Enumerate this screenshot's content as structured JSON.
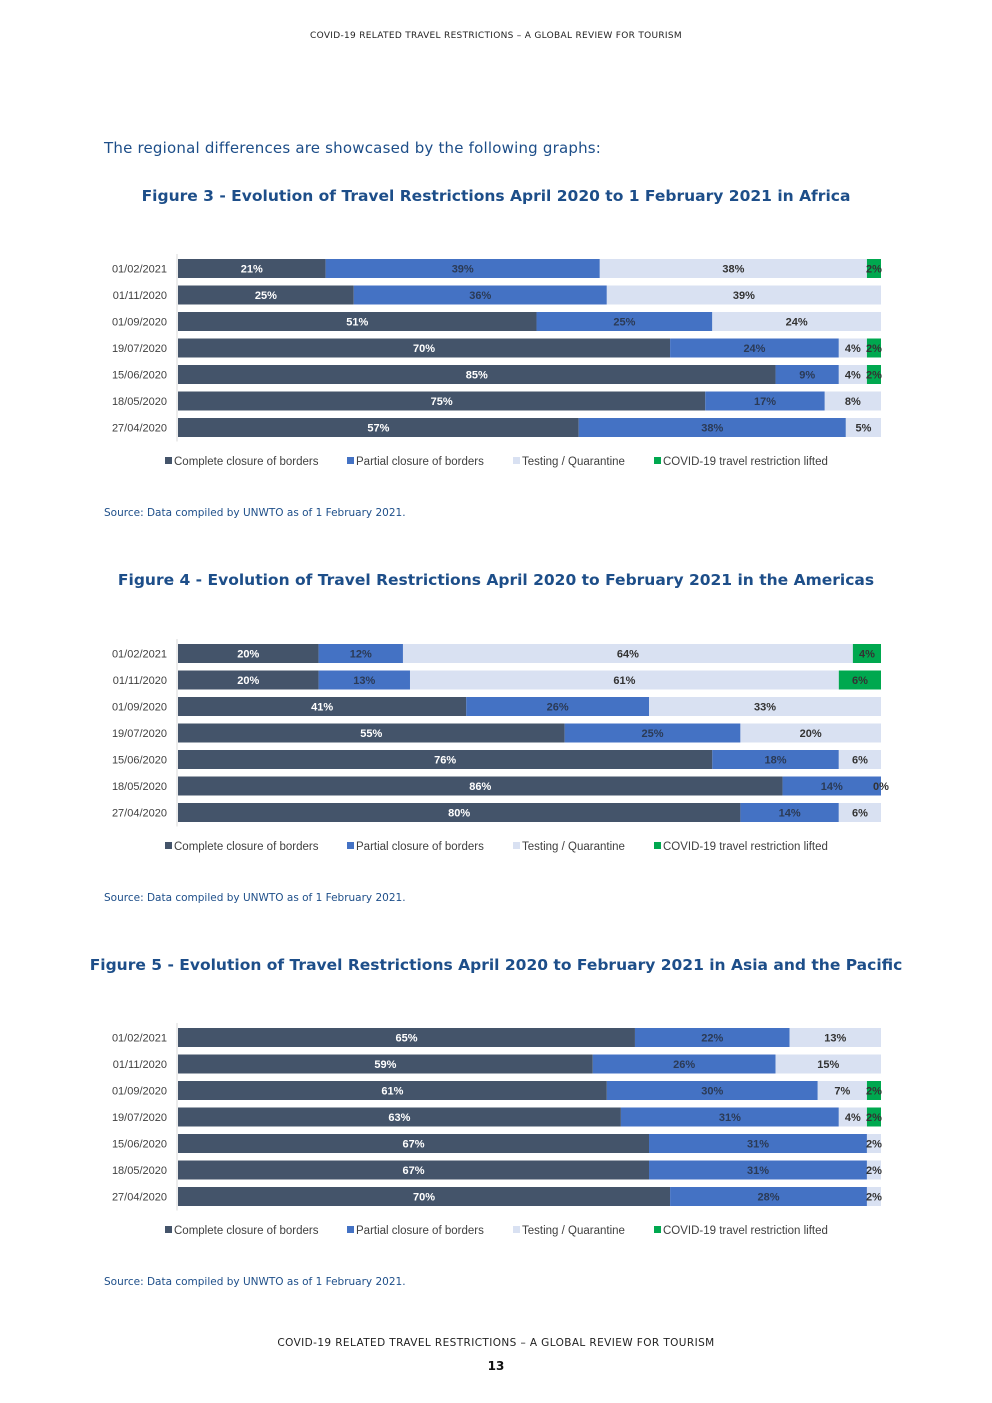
{
  "header": {
    "title": "COVID-19 RELATED TRAVEL RESTRICTIONS – A GLOBAL REVIEW FOR TOURISM"
  },
  "intro": "The regional differences are showcased by the following graphs:",
  "colors": {
    "complete": "#44546a",
    "partial": "#4472c4",
    "testing": "#d9e1f2",
    "lifted": "#00a84f",
    "title": "#1d4e89"
  },
  "figures": [
    {
      "title": "Figure 3 - Evolution of Travel Restrictions April 2020 to 1 February 2021 in Africa",
      "source": "Source: Data compiled by UNWTO as of 1 February 2021."
    },
    {
      "title": "Figure 4 - Evolution of Travel Restrictions April 2020 to February 2021 in the Americas",
      "source": "Source: Data compiled by UNWTO as of 1 February 2021."
    },
    {
      "title": "Figure 5 - Evolution of Travel Restrictions April 2020 to February 2021 in Asia and the Pacific",
      "source": "Source: Data compiled by UNWTO as of 1 February 2021."
    }
  ],
  "chart_data": [
    {
      "type": "bar",
      "orientation": "horizontal",
      "stacked": true,
      "title": "Figure 3 - Evolution of Travel Restrictions April 2020 to 1 February 2021 in Africa",
      "categories": [
        "01/02/2021",
        "01/11/2020",
        "01/09/2020",
        "19/07/2020",
        "15/06/2020",
        "18/05/2020",
        "27/04/2020"
      ],
      "series": [
        {
          "name": "Complete closure of borders",
          "values": [
            21,
            25,
            51,
            70,
            85,
            75,
            57
          ],
          "labels": [
            "21%",
            "25%",
            "51%",
            "70%",
            "85%",
            "75%",
            "57%"
          ]
        },
        {
          "name": "Partial closure of borders",
          "values": [
            39,
            36,
            25,
            24,
            9,
            17,
            38
          ],
          "labels": [
            "39%",
            "36%",
            "25%",
            "24%",
            "9%",
            "17%",
            "38%"
          ]
        },
        {
          "name": "Testing / Quarantine",
          "values": [
            38,
            39,
            24,
            4,
            4,
            8,
            5
          ],
          "labels": [
            "38%",
            "39%",
            "24%",
            "4%",
            "4%",
            "8%",
            "5%"
          ]
        },
        {
          "name": "COVID-19 travel restriction lifted",
          "values": [
            2,
            0,
            0,
            2,
            2,
            0,
            0
          ],
          "labels": [
            "2%",
            "",
            "",
            "2%",
            "2%",
            "",
            ""
          ]
        }
      ],
      "legend": "bottom",
      "xlim": [
        0,
        100
      ]
    },
    {
      "type": "bar",
      "orientation": "horizontal",
      "stacked": true,
      "title": "Figure 4 - Evolution of Travel Restrictions April 2020 to February 2021 in the Americas",
      "categories": [
        "01/02/2021",
        "01/11/2020",
        "01/09/2020",
        "19/07/2020",
        "15/06/2020",
        "18/05/2020",
        "27/04/2020"
      ],
      "series": [
        {
          "name": "Complete closure of borders",
          "values": [
            20,
            20,
            41,
            55,
            76,
            86,
            80
          ],
          "labels": [
            "20%",
            "20%",
            "41%",
            "55%",
            "76%",
            "86%",
            "80%"
          ]
        },
        {
          "name": "Partial closure of borders",
          "values": [
            12,
            13,
            26,
            25,
            18,
            14,
            14
          ],
          "labels": [
            "12%",
            "13%",
            "26%",
            "25%",
            "18%",
            "14%",
            "14%"
          ]
        },
        {
          "name": "Testing / Quarantine",
          "values": [
            64,
            61,
            33,
            20,
            6,
            0,
            6
          ],
          "labels": [
            "64%",
            "61%",
            "33%",
            "20%",
            "6%",
            "0%",
            "6%"
          ]
        },
        {
          "name": "COVID-19 travel restriction lifted",
          "values": [
            4,
            6,
            0,
            0,
            0,
            0,
            0
          ],
          "labels": [
            "4%",
            "6%",
            "",
            "",
            "",
            "",
            ""
          ]
        }
      ],
      "legend": "bottom",
      "xlim": [
        0,
        100
      ]
    },
    {
      "type": "bar",
      "orientation": "horizontal",
      "stacked": true,
      "title": "Figure 5 - Evolution of Travel Restrictions April 2020 to February 2021 in Asia and the Pacific",
      "categories": [
        "01/02/2021",
        "01/11/2020",
        "01/09/2020",
        "19/07/2020",
        "15/06/2020",
        "18/05/2020",
        "27/04/2020"
      ],
      "series": [
        {
          "name": "Complete closure of borders",
          "values": [
            65,
            59,
            61,
            63,
            67,
            67,
            70
          ],
          "labels": [
            "65%",
            "59%",
            "61%",
            "63%",
            "67%",
            "67%",
            "70%"
          ]
        },
        {
          "name": "Partial closure of borders",
          "values": [
            22,
            26,
            30,
            31,
            31,
            31,
            28
          ],
          "labels": [
            "22%",
            "26%",
            "30%",
            "31%",
            "31%",
            "31%",
            "28%"
          ]
        },
        {
          "name": "Testing / Quarantine",
          "values": [
            13,
            15,
            7,
            4,
            2,
            2,
            2
          ],
          "labels": [
            "13%",
            "15%",
            "7%",
            "4%",
            "2%",
            "2%",
            "2%"
          ]
        },
        {
          "name": "COVID-19 travel restriction lifted",
          "values": [
            0,
            0,
            2,
            2,
            0,
            0,
            0
          ],
          "labels": [
            "",
            "",
            "2%",
            "2%",
            "",
            "",
            ""
          ]
        }
      ],
      "legend": "bottom",
      "xlim": [
        0,
        100
      ]
    }
  ],
  "footer": {
    "title": "COVID-19 RELATED TRAVEL RESTRICTIONS – A GLOBAL REVIEW FOR TOURISM",
    "page_number": "13"
  }
}
